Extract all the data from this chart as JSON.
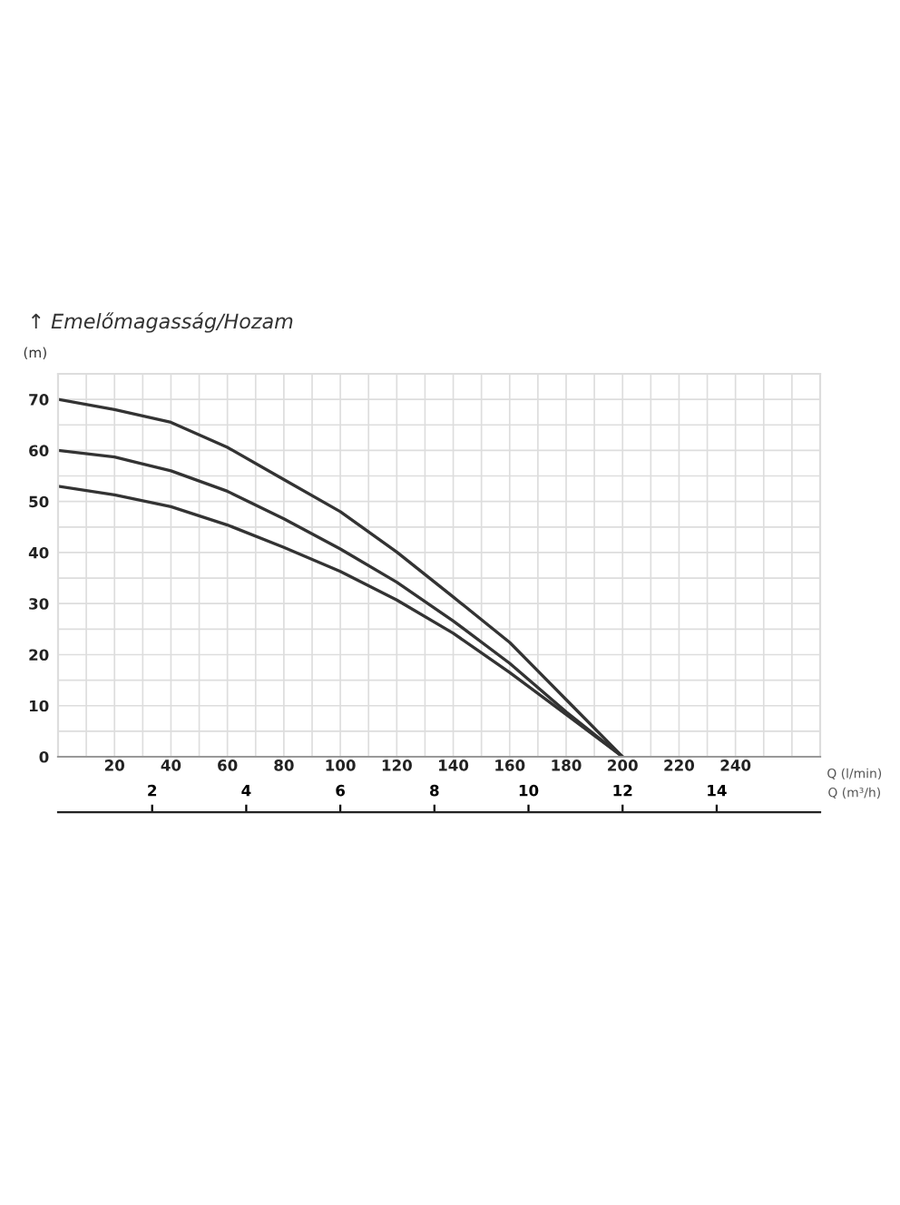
{
  "chart_data": {
    "type": "line",
    "title": "↑ Emelőmagasság/Hozam",
    "ylabel": "(m)",
    "xlabel": "Q (l/min)",
    "x2label": "Q (m³/h)",
    "x": [
      0,
      20,
      40,
      60,
      80,
      100,
      120,
      140,
      160,
      180,
      200
    ],
    "series": [
      {
        "color": "#333333",
        "values": [
          70,
          68,
          65.5,
          60.6,
          54.3,
          48,
          40.1,
          31.3,
          22.4,
          11.2,
          0
        ]
      },
      {
        "color": "#333333",
        "values": [
          60,
          58.7,
          56,
          52,
          46.6,
          40.7,
          34.2,
          26.6,
          18.3,
          8.8,
          0
        ]
      },
      {
        "color": "#333333",
        "values": [
          53,
          51.3,
          49,
          45.4,
          41,
          36.3,
          30.7,
          24.2,
          16.5,
          8.3,
          0
        ]
      }
    ],
    "xlim": [
      0,
      270
    ],
    "ylim": [
      0,
      75
    ],
    "x2lim": [
      0,
      16.2
    ],
    "xticks": [
      {
        "value": 10,
        "label": null
      },
      20,
      {
        "value": 30,
        "label": null
      },
      40,
      {
        "value": 50,
        "label": null
      },
      60,
      {
        "value": 70,
        "label": null
      },
      80,
      {
        "value": 90,
        "label": null
      },
      100,
      {
        "value": 110,
        "label": null
      },
      120,
      {
        "value": 130,
        "label": null
      },
      140,
      {
        "value": 150,
        "label": null
      },
      160,
      {
        "value": 170,
        "label": null
      },
      180,
      {
        "value": 190,
        "label": null
      },
      200,
      {
        "value": 210,
        "label": null
      },
      220,
      {
        "value": 230,
        "label": null
      },
      240,
      {
        "value": 250,
        "label": null
      },
      {
        "value": 260,
        "label": null
      }
    ],
    "yticks": [
      0,
      {
        "value": 5,
        "label": null
      },
      10,
      {
        "value": 15,
        "label": null
      },
      20,
      {
        "value": 25,
        "label": null
      },
      30,
      {
        "value": 35,
        "label": null
      },
      40,
      {
        "value": 45,
        "label": null
      },
      50,
      {
        "value": 55,
        "label": null
      },
      60,
      {
        "value": 65,
        "label": null
      },
      70
    ],
    "x2ticks": [
      2,
      4,
      6,
      8,
      10,
      12,
      14
    ],
    "grid": true,
    "marker": "none",
    "line_style": "solid",
    "legend": false
  }
}
